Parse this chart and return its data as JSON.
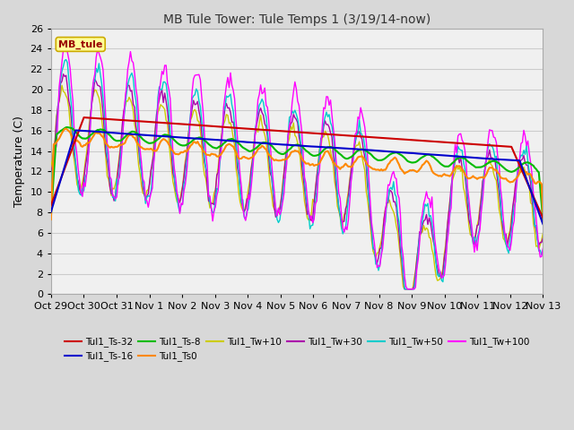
{
  "title": "MB Tule Tower: Tule Temps 1 (3/19/14-now)",
  "ylabel": "Temperature (C)",
  "ylim": [
    0,
    26
  ],
  "yticks": [
    0,
    2,
    4,
    6,
    8,
    10,
    12,
    14,
    16,
    18,
    20,
    22,
    24,
    26
  ],
  "x_labels": [
    "Oct 29",
    "Oct 30",
    "Oct 31",
    "Nov 1",
    "Nov 2",
    "Nov 3",
    "Nov 4",
    "Nov 5",
    "Nov 6",
    "Nov 7",
    "Nov 8",
    "Nov 9",
    "Nov 10",
    "Nov 11",
    "Nov 12",
    "Nov 13"
  ],
  "num_days": 15,
  "fig_bg_color": "#d8d8d8",
  "plot_bg_color": "#f0f0f0",
  "grid_color": "#cccccc",
  "legend_box_facecolor": "#ffff99",
  "legend_box_edgecolor": "#ccaa00",
  "series": [
    {
      "label": "Tul1_Ts-32",
      "color": "#cc0000",
      "lw": 1.5,
      "zorder": 5
    },
    {
      "label": "Tul1_Ts-16",
      "color": "#0000cc",
      "lw": 1.5,
      "zorder": 5
    },
    {
      "label": "Tul1_Ts-8",
      "color": "#00bb00",
      "lw": 1.5,
      "zorder": 4
    },
    {
      "label": "Tul1_Ts0",
      "color": "#ff8800",
      "lw": 1.5,
      "zorder": 4
    },
    {
      "label": "Tul1_Tw+10",
      "color": "#cccc00",
      "lw": 1.0,
      "zorder": 3
    },
    {
      "label": "Tul1_Tw+30",
      "color": "#aa00aa",
      "lw": 1.0,
      "zorder": 3
    },
    {
      "label": "Tul1_Tw+50",
      "color": "#00cccc",
      "lw": 1.0,
      "zorder": 3
    },
    {
      "label": "Tul1_Tw+100",
      "color": "#ff00ff",
      "lw": 1.0,
      "zorder": 3
    }
  ]
}
